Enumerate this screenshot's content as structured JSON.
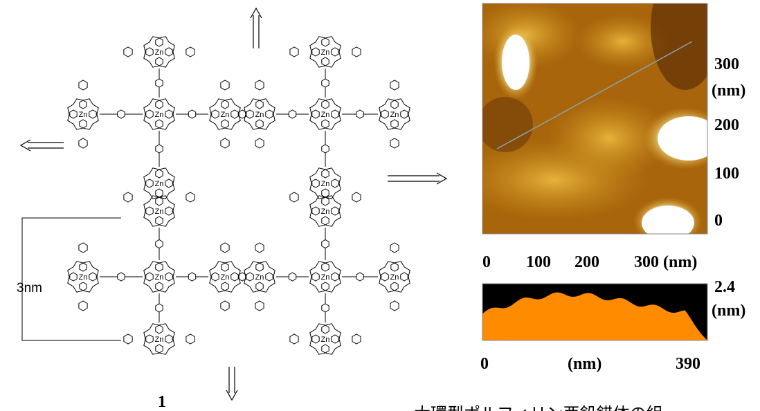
{
  "structure": {
    "compound_label": "1",
    "scale_label": "3nm",
    "metal_label": "Zn"
  },
  "afm_image": {
    "y_ticks": [
      "300",
      "(nm)",
      "200",
      "100",
      "0"
    ],
    "x_ticks": [
      "0",
      "100",
      "200",
      "300 (nm)"
    ]
  },
  "height_profile": {
    "y_labels": [
      "2.4",
      "(nm)"
    ],
    "x_labels": [
      "0",
      "(nm)",
      "390"
    ]
  },
  "caption": "大環型ポルフィリン亜鉛錯体の組"
}
